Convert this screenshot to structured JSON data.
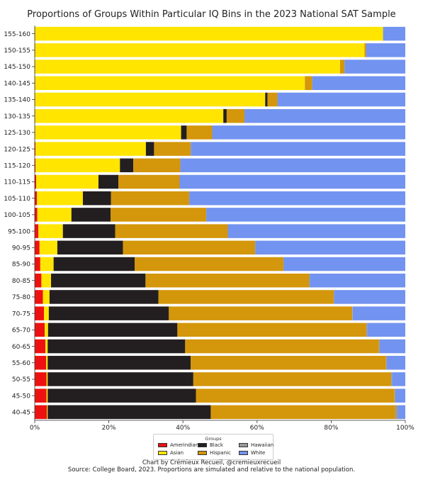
{
  "chart_data": {
    "type": "bar",
    "orientation": "horizontal",
    "stacked": true,
    "title": "Proportions of Groups Within Particular IQ Bins in the 2023 National SAT Sample",
    "xlabel": "",
    "ylabel": "",
    "xlim": [
      0,
      100
    ],
    "x_ticks": [
      "0%",
      "20%",
      "40%",
      "60%",
      "80%",
      "100%"
    ],
    "categories": [
      "155-160",
      "150-155",
      "145-150",
      "140-145",
      "135-140",
      "130-135",
      "125-130",
      "120-125",
      "115-120",
      "110-115",
      "105-110",
      "100-105",
      "95-100",
      "90-95",
      "85-90",
      "80-85",
      "75-80",
      "70-75",
      "65-70",
      "60-65",
      "55-60",
      "50-55",
      "45-50",
      "40-45"
    ],
    "series": [
      {
        "name": "Amerindian",
        "color": "#ee1111",
        "values": [
          0.1,
          0.1,
          0.1,
          0.1,
          0.1,
          0.1,
          0.1,
          0.2,
          0.2,
          0.4,
          0.6,
          0.7,
          1.0,
          1.3,
          1.5,
          1.8,
          2.2,
          2.5,
          2.7,
          2.9,
          3.1,
          3.2,
          3.2,
          3.3
        ]
      },
      {
        "name": "Asian",
        "color": "#ffe500",
        "values": [
          93.9,
          88.9,
          82.3,
          72.8,
          62.1,
          50.8,
          39.4,
          29.8,
          22.8,
          16.8,
          12.4,
          9.2,
          6.6,
          4.8,
          3.6,
          2.6,
          1.8,
          1.3,
          0.9,
          0.6,
          0.4,
          0.3,
          0.3,
          0.2
        ]
      },
      {
        "name": "Black",
        "color": "#231f20",
        "values": [
          0.0,
          0.0,
          0.0,
          0.0,
          0.6,
          0.9,
          1.5,
          2.2,
          3.6,
          5.4,
          7.6,
          10.6,
          14.1,
          17.7,
          21.9,
          25.5,
          29.4,
          32.4,
          34.9,
          37.1,
          38.6,
          39.3,
          40.0,
          44.0
        ]
      },
      {
        "name": "Hispanic",
        "color": "#d4960a",
        "values": [
          0.0,
          0.4,
          1.2,
          2.0,
          2.7,
          4.8,
          6.9,
          9.9,
          12.7,
          16.5,
          21.1,
          25.8,
          30.4,
          35.7,
          40.1,
          44.2,
          47.3,
          49.5,
          51.0,
          52.3,
          52.7,
          53.4,
          53.6,
          49.8
        ]
      },
      {
        "name": "Hawaiian",
        "color": "#999999",
        "values": [
          0.0,
          0.0,
          0.0,
          0.0,
          0.0,
          0.0,
          0.0,
          0.0,
          0.0,
          0.0,
          0.0,
          0.0,
          0.0,
          0.0,
          0.1,
          0.1,
          0.1,
          0.1,
          0.2,
          0.2,
          0.2,
          0.2,
          0.2,
          0.7
        ]
      },
      {
        "name": "White",
        "color": "#7293f0",
        "values": [
          6.0,
          10.6,
          16.4,
          25.1,
          34.5,
          43.4,
          52.1,
          57.9,
          60.7,
          60.9,
          58.3,
          53.7,
          47.9,
          40.5,
          32.8,
          25.8,
          19.2,
          14.2,
          10.3,
          6.9,
          5.0,
          3.6,
          2.7,
          2.0
        ]
      }
    ],
    "grid": false,
    "legend_position": "bottom-center",
    "legend_title": "Groups"
  },
  "footer": {
    "credit": "Chart by Crémieux Recueil, @cremieuxrecueil",
    "source": "Source: College Board, 2023. Proportions are simulated and relative to the national population."
  }
}
